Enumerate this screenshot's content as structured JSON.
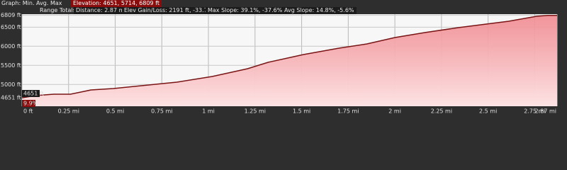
{
  "header": {
    "graph_label": "Graph: Min. Avg. Max",
    "elevation": "Elevation: 4651, 5714, 6809 ft",
    "range_label": "Range Totals",
    "distance": "Distance: 2.87 mi",
    "elev_gain_loss": "Elev Gain/Loss: 2191 ft, -33.7 ft",
    "max_slope": "Max Slope: 39.1%, -37.6%",
    "avg_slope": "Avg Slope: 14.8%, -5.6%"
  },
  "chart_data": {
    "type": "area",
    "x": [
      0,
      0.07,
      0.17,
      0.26,
      0.37,
      0.49,
      0.64,
      0.83,
      1.02,
      1.21,
      1.32,
      1.51,
      1.7,
      1.85,
      2.0,
      2.16,
      2.34,
      2.46,
      2.61,
      2.76,
      2.82,
      2.87
    ],
    "values": [
      4651,
      4708,
      4745,
      4745,
      4856,
      4893,
      4968,
      5060,
      5209,
      5413,
      5580,
      5783,
      5950,
      6061,
      6228,
      6358,
      6488,
      6562,
      6655,
      6784,
      6809,
      6809
    ],
    "color": "#7a1414",
    "fill_color": "#f7b5b8",
    "xlim": [
      0,
      2.87
    ],
    "ylim": [
      4430,
      6840
    ],
    "xticks": [
      {
        "value": 0,
        "label": "0 ft"
      },
      {
        "value": 0.25,
        "label": "0.25 mi"
      },
      {
        "value": 0.5,
        "label": "0.5 mi"
      },
      {
        "value": 0.75,
        "label": "0.75 mi"
      },
      {
        "value": 1,
        "label": "1 mi"
      },
      {
        "value": 1.25,
        "label": "1.25 mi"
      },
      {
        "value": 1.5,
        "label": "1.5 mi"
      },
      {
        "value": 1.75,
        "label": "1.75 mi"
      },
      {
        "value": 2,
        "label": "2 mi"
      },
      {
        "value": 2.25,
        "label": "2.25 mi"
      },
      {
        "value": 2.5,
        "label": "2.5 mi"
      },
      {
        "value": 2.75,
        "label": "2.75 mi"
      },
      {
        "value": 2.87,
        "label": "2.87 mi"
      }
    ],
    "yticks": [
      {
        "value": 4651,
        "label": "4651 ft"
      },
      {
        "value": 5000,
        "label": "5000 ft"
      },
      {
        "value": 5500,
        "label": "5500 ft"
      },
      {
        "value": 6000,
        "label": "6000 ft"
      },
      {
        "value": 6500,
        "label": "6500 ft"
      },
      {
        "value": 6809,
        "label": "6809 ft"
      }
    ],
    "grid": true,
    "cursor_labels": [
      "4651 ft",
      "9.9%"
    ]
  }
}
